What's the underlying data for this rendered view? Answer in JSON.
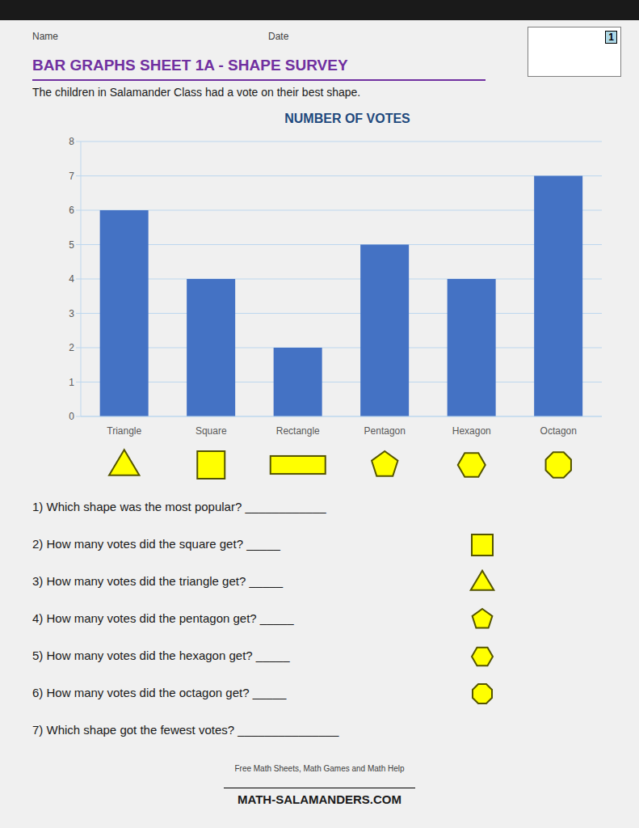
{
  "chart_data": {
    "type": "bar",
    "title": "NUMBER OF VOTES",
    "page_title": "BAR GRAPHS SHEET 1A - SHAPE SURVEY",
    "subtitle": "The children in Salamander Class had a vote on their best shape.",
    "annotations": [
      "Name",
      "Date",
      "1"
    ],
    "categories": [
      "Triangle",
      "Square",
      "Rectangle",
      "Pentagon",
      "Hexagon",
      "Octagon"
    ],
    "values": [
      6,
      4,
      2,
      5,
      4,
      7
    ],
    "color": "#4472C4",
    "ylim": [
      0,
      8
    ],
    "yticks": [
      0,
      1,
      2,
      3,
      4,
      5,
      6,
      7,
      8
    ],
    "grid": true,
    "questions": [
      "1) Which shape was the most popular? ____________",
      "2) How many votes did the square get? _____",
      "3) How many votes did the triangle get? _____",
      "4) How many votes did the pentagon get? _____",
      "5) How many votes did the hexagon get? _____",
      "6) How many votes did the octagon get? _____",
      "7) Which shape got the fewest votes? _______________"
    ],
    "footer": [
      "Free Math Sheets, Math Games and Math Help",
      "MATH-SALAMANDERS.COM"
    ]
  }
}
